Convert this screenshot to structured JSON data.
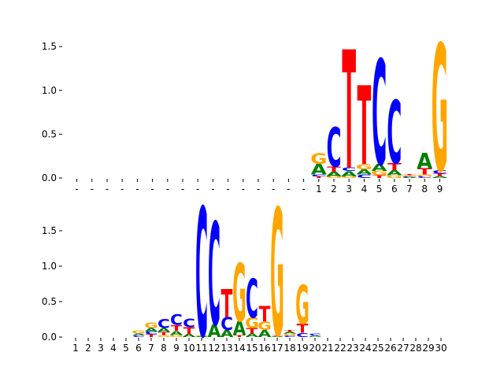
{
  "colors": {
    "A": "#008000",
    "C": "#0000ff",
    "G": "#ffa500",
    "T": "#ff0000"
  },
  "chart_data": [
    {
      "type": "sequence-logo",
      "ylim": [
        0,
        1.6
      ],
      "yticks": [
        "0.0",
        "0.5",
        "1.0",
        "1.5"
      ],
      "ytick_values": [
        0,
        0.5,
        1.0,
        1.5
      ],
      "positions": 25,
      "xtick_labels": [
        "-",
        "-",
        "-",
        "-",
        "-",
        "-",
        "-",
        "-",
        "-",
        "-",
        "-",
        "-",
        "-",
        "-",
        "-",
        "-",
        "1",
        "2",
        "3",
        "4",
        "5",
        "6",
        "7",
        "8",
        "9"
      ],
      "stacks": [
        [],
        [],
        [],
        [],
        [],
        [],
        [],
        [],
        [],
        [],
        [],
        [],
        [],
        [],
        [],
        [],
        [
          [
            "T",
            0.02
          ],
          [
            "C",
            0.02
          ],
          [
            "A",
            0.12
          ],
          [
            "G",
            0.12
          ]
        ],
        [
          [
            "G",
            0.02
          ],
          [
            "A",
            0.05
          ],
          [
            "T",
            0.06
          ],
          [
            "C",
            0.45
          ]
        ],
        [
          [
            "G",
            0.02
          ],
          [
            "A",
            0.06
          ],
          [
            "C",
            0.04
          ],
          [
            "T",
            1.35
          ]
        ],
        [
          [
            "C",
            0.04
          ],
          [
            "A",
            0.06
          ],
          [
            "G",
            0.06
          ],
          [
            "T",
            0.9
          ]
        ],
        [
          [
            "T",
            0.03
          ],
          [
            "G",
            0.05
          ],
          [
            "A",
            0.08
          ],
          [
            "C",
            1.2
          ]
        ],
        [
          [
            "G",
            0.03
          ],
          [
            "A",
            0.06
          ],
          [
            "T",
            0.08
          ],
          [
            "C",
            0.72
          ]
        ],
        [
          [
            "A",
            0.01
          ],
          [
            "C",
            0.01
          ],
          [
            "G",
            0.01
          ],
          [
            "T",
            0.01
          ]
        ],
        [
          [
            "C",
            0.02
          ],
          [
            "G",
            0.02
          ],
          [
            "T",
            0.07
          ],
          [
            "A",
            0.18
          ]
        ],
        [
          [
            "A",
            0.02
          ],
          [
            "T",
            0.03
          ],
          [
            "C",
            0.04
          ],
          [
            "G",
            1.45
          ]
        ]
      ]
    },
    {
      "type": "sequence-logo",
      "ylim": [
        0,
        2.0
      ],
      "yticks": [
        "0.0",
        "0.5",
        "1.0",
        "1.5"
      ],
      "ytick_values": [
        0,
        0.5,
        1.0,
        1.5
      ],
      "positions": 30,
      "xtick_labels": [
        "1",
        "2",
        "3",
        "4",
        "5",
        "6",
        "7",
        "8",
        "9",
        "10",
        "11",
        "12",
        "13",
        "14",
        "15",
        "16",
        "17",
        "18",
        "19",
        "20",
        "21",
        "22",
        "23",
        "24",
        "25",
        "26",
        "27",
        "28",
        "29",
        "30"
      ],
      "stacks": [
        [],
        [],
        [],
        [],
        [],
        [
          [
            "C",
            0.03
          ],
          [
            "A",
            0.02
          ],
          [
            "G",
            0.04
          ]
        ],
        [
          [
            "T",
            0.04
          ],
          [
            "C",
            0.04
          ],
          [
            "A",
            0.05
          ],
          [
            "G",
            0.08
          ]
        ],
        [
          [
            "G",
            0.03
          ],
          [
            "T",
            0.04
          ],
          [
            "A",
            0.06
          ],
          [
            "C",
            0.13
          ]
        ],
        [
          [
            "G",
            0.03
          ],
          [
            "A",
            0.06
          ],
          [
            "T",
            0.08
          ],
          [
            "C",
            0.15
          ]
        ],
        [
          [
            "A",
            0.04
          ],
          [
            "T",
            0.1
          ],
          [
            "C",
            0.12
          ]
        ],
        [
          [
            "A",
            0.01
          ],
          [
            "G",
            0.01
          ],
          [
            "C",
            1.82
          ]
        ],
        [
          [
            "A",
            0.18
          ],
          [
            "C",
            1.45
          ]
        ],
        [
          [
            "A",
            0.1
          ],
          [
            "C",
            0.18
          ],
          [
            "T",
            0.4
          ]
        ],
        [
          [
            "T",
            0.03
          ],
          [
            "A",
            0.2
          ],
          [
            "G",
            0.82
          ]
        ],
        [
          [
            "A",
            0.05
          ],
          [
            "T",
            0.08
          ],
          [
            "G",
            0.15
          ],
          [
            "C",
            0.55
          ]
        ],
        [
          [
            "A",
            0.1
          ],
          [
            "G",
            0.12
          ],
          [
            "T",
            0.22
          ]
        ],
        [
          [
            "A",
            0.01
          ],
          [
            "T",
            0.02
          ],
          [
            "G",
            1.8
          ]
        ],
        [
          [
            "C",
            0.02
          ],
          [
            "G",
            0.03
          ],
          [
            "A",
            0.03
          ],
          [
            "T",
            0.02
          ]
        ],
        [
          [
            "C",
            0.06
          ],
          [
            "T",
            0.13
          ],
          [
            "G",
            0.55
          ]
        ],
        [
          [
            "A",
            0.02
          ],
          [
            "C",
            0.03
          ]
        ],
        [],
        [],
        [],
        [],
        [],
        [],
        [],
        [],
        [],
        []
      ]
    }
  ]
}
